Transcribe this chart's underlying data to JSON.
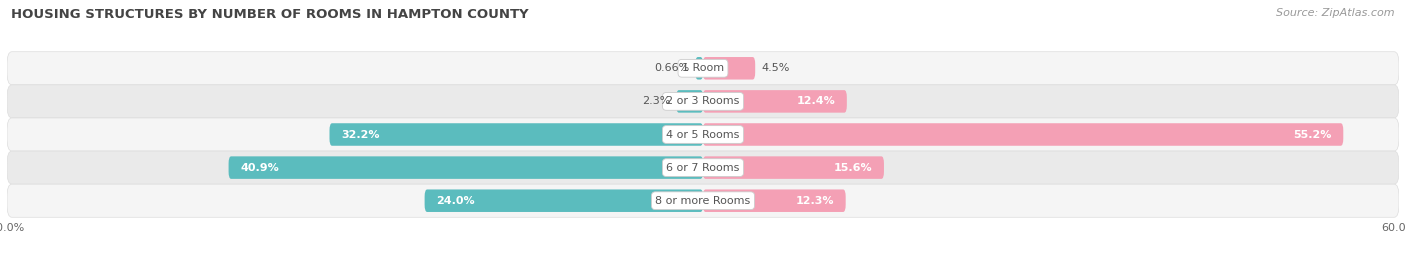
{
  "title": "HOUSING STRUCTURES BY NUMBER OF ROOMS IN HAMPTON COUNTY",
  "source": "Source: ZipAtlas.com",
  "categories": [
    "1 Room",
    "2 or 3 Rooms",
    "4 or 5 Rooms",
    "6 or 7 Rooms",
    "8 or more Rooms"
  ],
  "owner_values": [
    0.66,
    2.3,
    32.2,
    40.9,
    24.0
  ],
  "renter_values": [
    4.5,
    12.4,
    55.2,
    15.6,
    12.3
  ],
  "owner_color": "#5bbcbe",
  "renter_color": "#f4a0b5",
  "renter_color_dark": "#f06090",
  "row_bg_colors": [
    "#f5f5f5",
    "#eaeaea"
  ],
  "xlim": 60.0,
  "title_fontsize": 9.5,
  "label_fontsize": 8,
  "value_fontsize": 8,
  "source_fontsize": 8,
  "legend_fontsize": 8.5,
  "axis_label_fontsize": 8,
  "background_color": "#ffffff"
}
